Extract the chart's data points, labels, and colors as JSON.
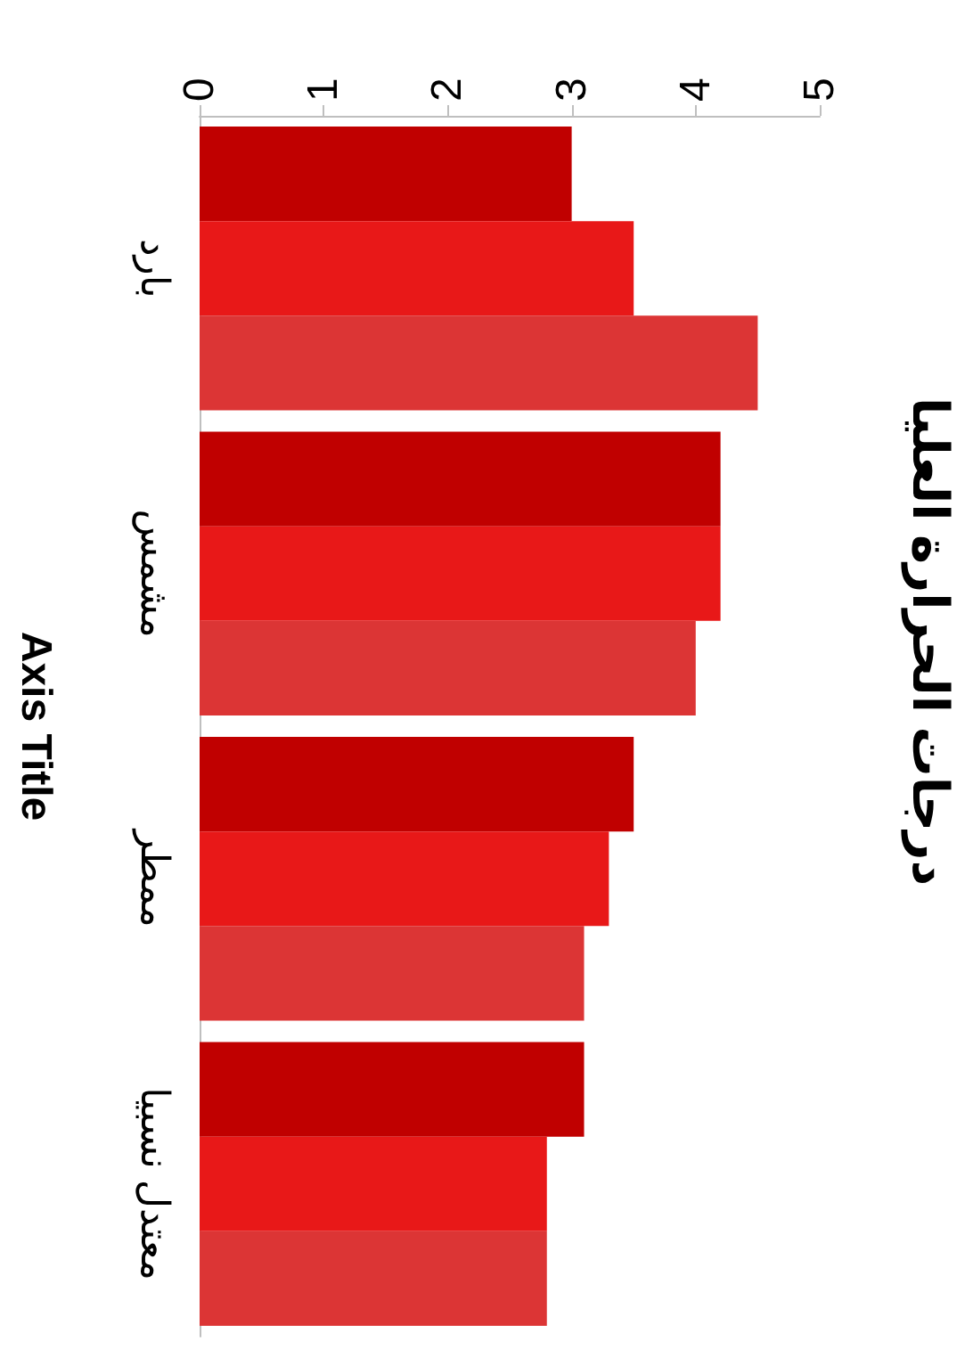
{
  "chart_data": {
    "type": "bar",
    "orientation": "horizontal",
    "title": "درجات الحرارة العليا",
    "ylabel": "Axis Title",
    "categories": [
      "بارد",
      "مشمس",
      "ممطر",
      "معتدل نسبيا"
    ],
    "series": [
      {
        "color": "#c00000",
        "values": [
          3.0,
          4.2,
          3.5,
          3.1
        ]
      },
      {
        "color": "#e81818",
        "values": [
          3.5,
          4.2,
          3.3,
          2.8
        ]
      },
      {
        "color": "#dc3535",
        "values": [
          4.5,
          4.0,
          3.1,
          2.8
        ]
      }
    ],
    "xlim": [
      0,
      5
    ],
    "xticks": [
      0,
      1,
      2,
      3,
      4,
      5
    ],
    "grid": false
  }
}
